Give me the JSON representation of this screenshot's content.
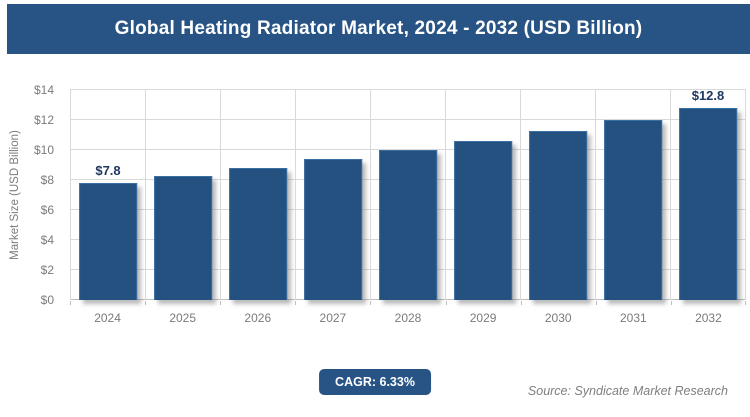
{
  "title": "Global Heating Radiator Market, 2024 - 2032 (USD Billion)",
  "colors": {
    "brand": "#285485",
    "bar": "#24517F",
    "bar_border": "#3A6FA3",
    "grid": "#D9D9D9",
    "axis_line": "#BFBFBF",
    "axis_text": "#7B7B7B",
    "data_label": "#1F3864",
    "source_text": "#7F7F7F"
  },
  "chart_data": {
    "type": "bar",
    "title": "Global Heating Radiator Market, 2024 - 2032 (USD Billion)",
    "categories": [
      "2024",
      "2025",
      "2026",
      "2027",
      "2028",
      "2029",
      "2030",
      "2031",
      "2032"
    ],
    "values": [
      7.8,
      8.3,
      8.8,
      9.4,
      10.0,
      10.6,
      11.3,
      12.0,
      12.8
    ],
    "bar_labels": [
      "$7.8",
      null,
      null,
      null,
      null,
      null,
      null,
      null,
      "$12.8"
    ],
    "xlabel": "",
    "ylabel": "Market Size (USD Billion)",
    "ylim": [
      0,
      14
    ],
    "ytick_step": 2,
    "ytick_labels": [
      "$0",
      "$2",
      "$4",
      "$6",
      "$8",
      "$10",
      "$12",
      "$14"
    ],
    "grid": true,
    "legend": false
  },
  "footer": {
    "cagr_label": "CAGR: 6.33%",
    "source": "Source: Syndicate Market Research"
  }
}
